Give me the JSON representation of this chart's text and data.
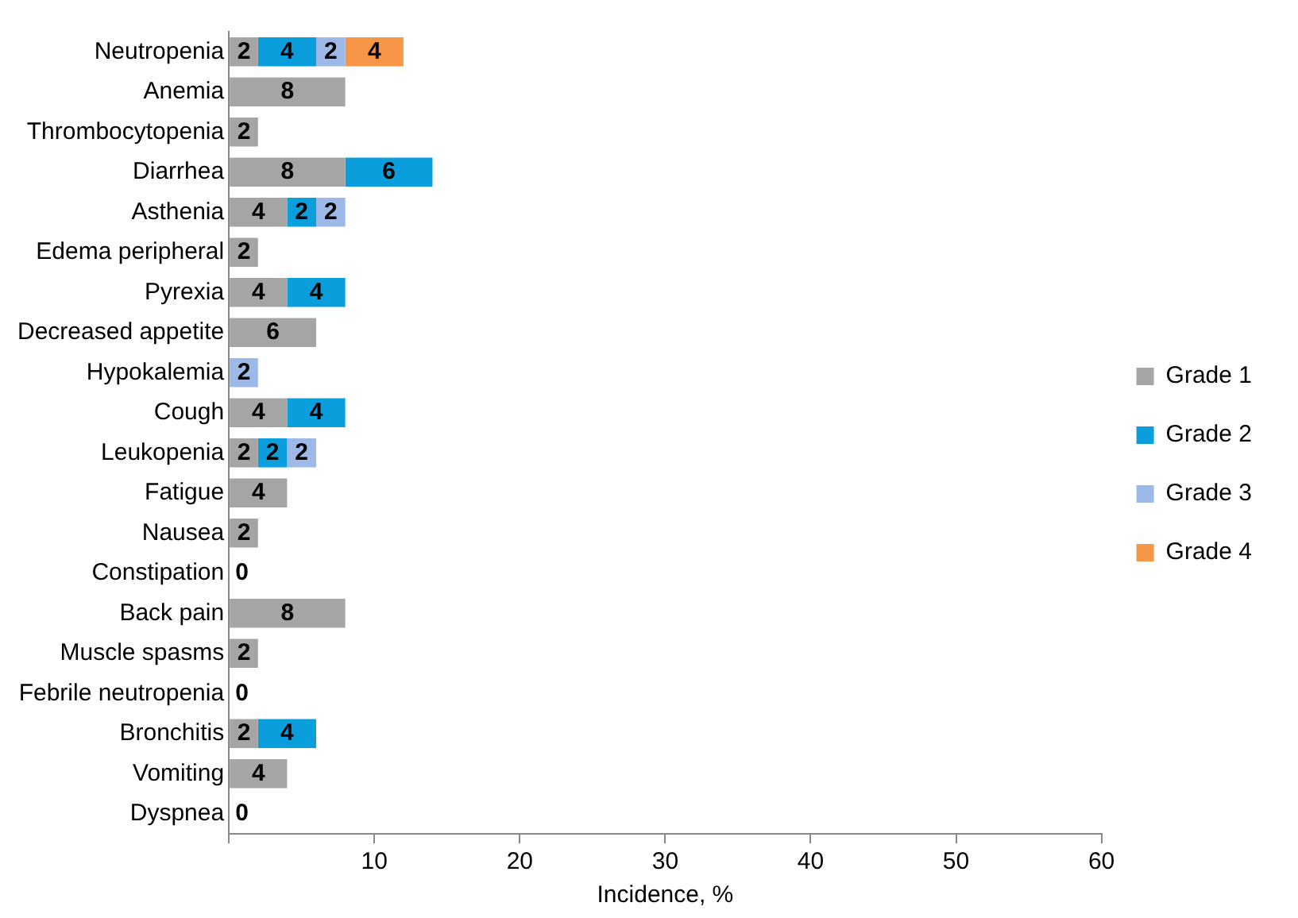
{
  "chart_data": {
    "type": "bar",
    "orientation": "horizontal",
    "stacked": true,
    "xlabel": "Incidence, %",
    "categories": [
      "Neutropenia",
      "Anemia",
      "Thrombocytopenia",
      "Diarrhea",
      "Asthenia",
      "Edema peripheral",
      "Pyrexia",
      "Decreased appetite",
      "Hypokalemia",
      "Cough",
      "Leukopenia",
      "Fatigue",
      "Nausea",
      "Constipation",
      "Back pain",
      "Muscle spasms",
      "Febrile neutropenia",
      "Bronchitis",
      "Vomiting",
      "Dyspnea"
    ],
    "series": [
      {
        "name": "Grade 1",
        "color": "#a5a5a5",
        "values": [
          2,
          8,
          2,
          8,
          4,
          2,
          4,
          6,
          null,
          4,
          2,
          4,
          2,
          0,
          8,
          2,
          0,
          2,
          4,
          0
        ],
        "value_labels": [
          "2",
          "8",
          "2",
          "8",
          "4",
          "2",
          "4",
          "6",
          null,
          "4",
          "2",
          "4",
          "2",
          "0",
          "8",
          "2",
          "0",
          "2",
          "4",
          "0"
        ]
      },
      {
        "name": "Grade 2",
        "color": "#0a9fdc",
        "values": [
          4,
          null,
          null,
          6,
          2,
          null,
          4,
          null,
          null,
          4,
          2,
          null,
          null,
          null,
          null,
          null,
          null,
          4,
          null,
          null
        ],
        "value_labels": [
          "4",
          null,
          null,
          "6",
          "2",
          null,
          "4",
          null,
          null,
          "4",
          "2",
          null,
          null,
          null,
          null,
          null,
          null,
          "4",
          null,
          null
        ]
      },
      {
        "name": "Grade 3",
        "color": "#9cb9e8",
        "values": [
          2,
          null,
          null,
          null,
          2,
          null,
          null,
          null,
          2,
          null,
          2,
          null,
          null,
          null,
          null,
          null,
          null,
          null,
          null,
          null
        ],
        "value_labels": [
          "2",
          null,
          null,
          null,
          "2",
          null,
          null,
          null,
          "2",
          null,
          "2",
          null,
          null,
          null,
          null,
          null,
          null,
          null,
          null,
          null
        ]
      },
      {
        "name": "Grade 4",
        "color": "#f79646",
        "values": [
          4,
          null,
          null,
          null,
          null,
          null,
          null,
          null,
          null,
          null,
          null,
          null,
          null,
          null,
          null,
          null,
          null,
          null,
          null,
          null
        ],
        "value_labels": [
          "4",
          null,
          null,
          null,
          null,
          null,
          null,
          null,
          null,
          null,
          null,
          null,
          null,
          null,
          null,
          null,
          null,
          null,
          null,
          null
        ]
      }
    ],
    "xlim": [
      0,
      60
    ],
    "xticks": [
      {
        "value": 0,
        "label": null
      },
      10,
      20,
      30,
      40,
      50,
      60
    ],
    "grid": false,
    "legend": "right"
  }
}
